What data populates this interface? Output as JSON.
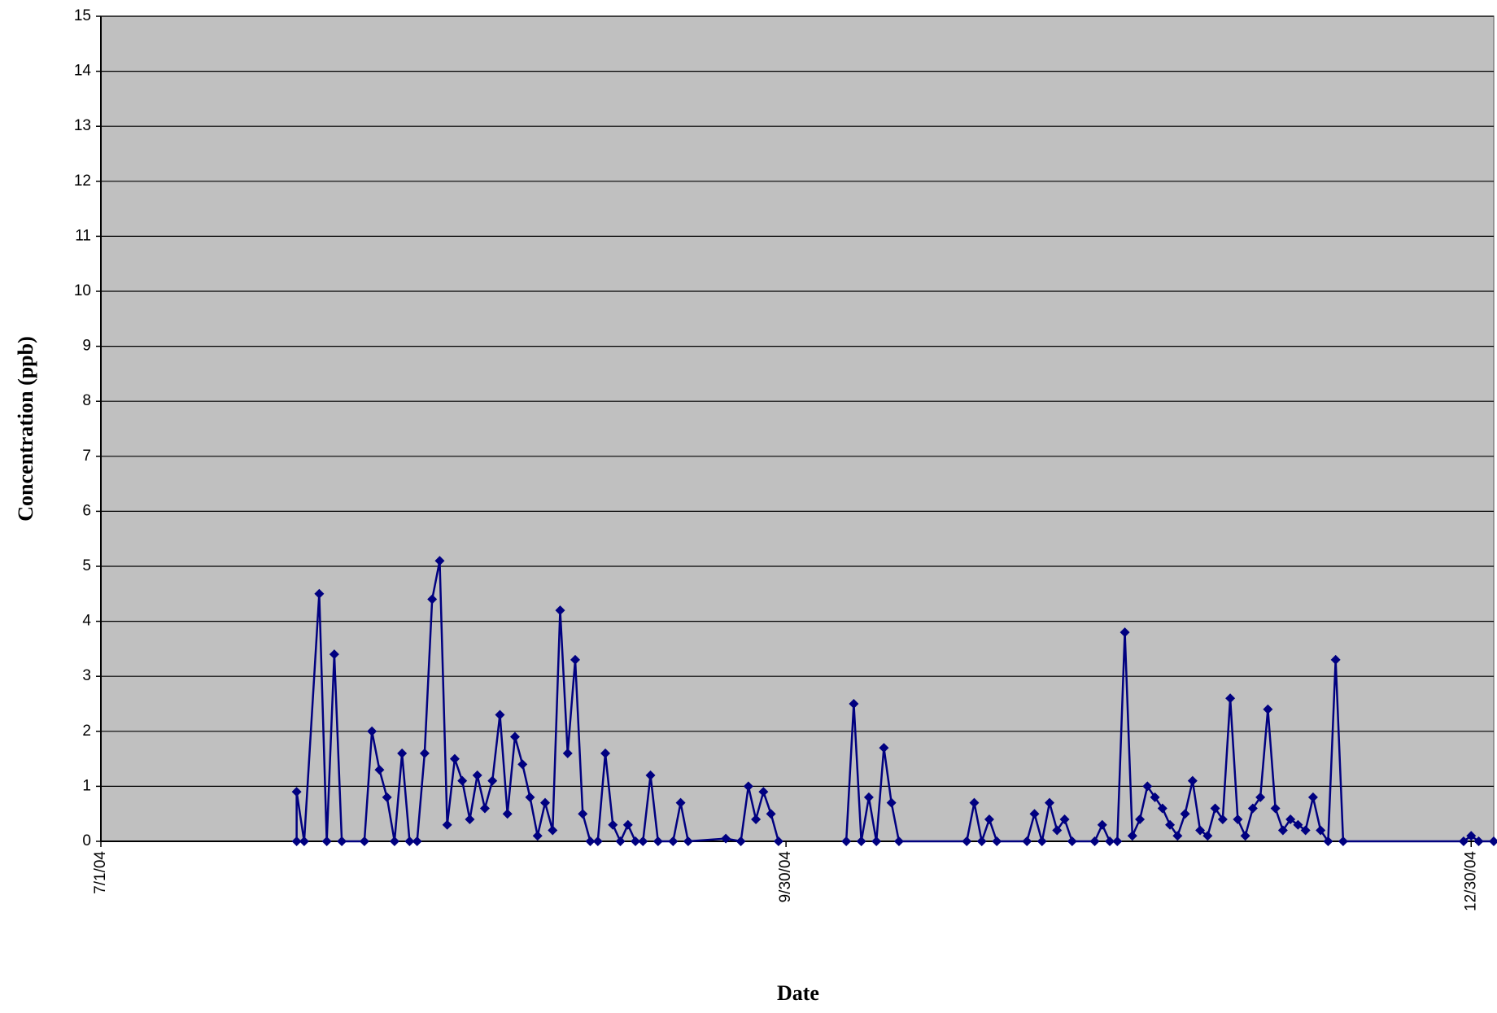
{
  "chart_data": {
    "type": "line",
    "x_label": "Date",
    "y_label": "Concentration (ppb)",
    "xlim": [
      "7/1/04",
      "1/2/05"
    ],
    "xticks": [
      "7/1/04",
      "9/30/04",
      "12/30/04"
    ],
    "ylim": [
      0,
      15
    ],
    "yticks": [
      0,
      1,
      2,
      3,
      4,
      5,
      6,
      7,
      8,
      9,
      10,
      11,
      12,
      13,
      14,
      15
    ],
    "grid": true,
    "background": "#c0c0c0",
    "series": [
      {
        "color": "#000080",
        "x": [
          "7/27/04",
          "7/27/04",
          "7/28/04",
          "7/30/04",
          "7/31/04",
          "8/1/04",
          "8/2/04",
          "8/5/04",
          "8/6/04",
          "8/7/04",
          "8/8/04",
          "8/9/04",
          "8/10/04",
          "8/11/04",
          "8/12/04",
          "8/13/04",
          "8/14/04",
          "8/15/04",
          "8/16/04",
          "8/17/04",
          "8/18/04",
          "8/19/04",
          "8/20/04",
          "8/21/04",
          "8/22/04",
          "8/23/04",
          "8/24/04",
          "8/25/04",
          "8/26/04",
          "8/27/04",
          "8/28/04",
          "8/29/04",
          "8/30/04",
          "8/31/04",
          "9/1/04",
          "9/2/04",
          "9/3/04",
          "9/4/04",
          "9/5/04",
          "9/6/04",
          "9/7/04",
          "9/8/04",
          "9/9/04",
          "9/10/04",
          "9/11/04",
          "9/12/04",
          "9/13/04",
          "9/15/04",
          "9/16/04",
          "9/17/04",
          "9/22/04",
          "9/24/04",
          "9/25/04",
          "9/26/04",
          "9/27/04",
          "9/28/04",
          "9/29/04",
          "10/3/04",
          "10/8/04",
          "10/9/04",
          "10/10/04",
          "10/11/04",
          "10/12/04",
          "10/13/04",
          "10/14/04",
          "10/15/04",
          "10/24/04",
          "10/25/04",
          "10/26/04",
          "10/27/04",
          "10/28/04",
          "11/1/04",
          "11/2/04",
          "11/3/04",
          "11/4/04",
          "11/5/04",
          "11/6/04",
          "11/7/04",
          "11/10/04",
          "11/11/04",
          "11/12/04",
          "11/13/04",
          "11/14/04",
          "11/15/04",
          "11/16/04",
          "11/17/04",
          "11/18/04",
          "11/19/04",
          "11/20/04",
          "11/21/04",
          "11/22/04",
          "11/23/04",
          "11/24/04",
          "11/25/04",
          "11/26/04",
          "11/27/04",
          "11/28/04",
          "11/29/04",
          "11/30/04",
          "12/1/04",
          "12/2/04",
          "12/3/04",
          "12/4/04",
          "12/5/04",
          "12/6/04",
          "12/7/04",
          "12/8/04",
          "12/9/04",
          "12/10/04",
          "12/11/04",
          "12/12/04",
          "12/13/04",
          "12/29/04",
          "12/30/04",
          "12/31/04",
          "1/2/05"
        ],
        "values": [
          0,
          0.9,
          0,
          4.5,
          0,
          3.4,
          0,
          0,
          2.0,
          1.3,
          0.8,
          0,
          1.6,
          0,
          0,
          1.6,
          4.4,
          5.1,
          0.3,
          1.5,
          1.1,
          0.4,
          1.2,
          0.6,
          1.1,
          2.3,
          0.5,
          1.9,
          1.4,
          0.8,
          0.1,
          0.7,
          0.2,
          4.2,
          1.6,
          3.3,
          0.5,
          0,
          0,
          1.6,
          0.3,
          0,
          0.3,
          0,
          0,
          1.2,
          0,
          0,
          0.7,
          0,
          0.05,
          0,
          1.0,
          0.4,
          0.9,
          0.5,
          0,
          null,
          0,
          2.5,
          0,
          0.8,
          0,
          1.7,
          0.7,
          0,
          0,
          0.7,
          0,
          0.4,
          0,
          0,
          0.5,
          0,
          0.7,
          0.2,
          0.4,
          0,
          0,
          0.3,
          0,
          0,
          3.8,
          0.1,
          0.4,
          1.0,
          0.8,
          0.6,
          0.3,
          0.1,
          0.5,
          1.1,
          0.2,
          0.1,
          0.6,
          0.4,
          2.6,
          0.4,
          0.1,
          0.6,
          0.8,
          2.4,
          0.6,
          0.2,
          0.4,
          0.3,
          0.2,
          0.8,
          0.2,
          0,
          3.3,
          0,
          0,
          0.1,
          0,
          0
        ]
      }
    ]
  }
}
